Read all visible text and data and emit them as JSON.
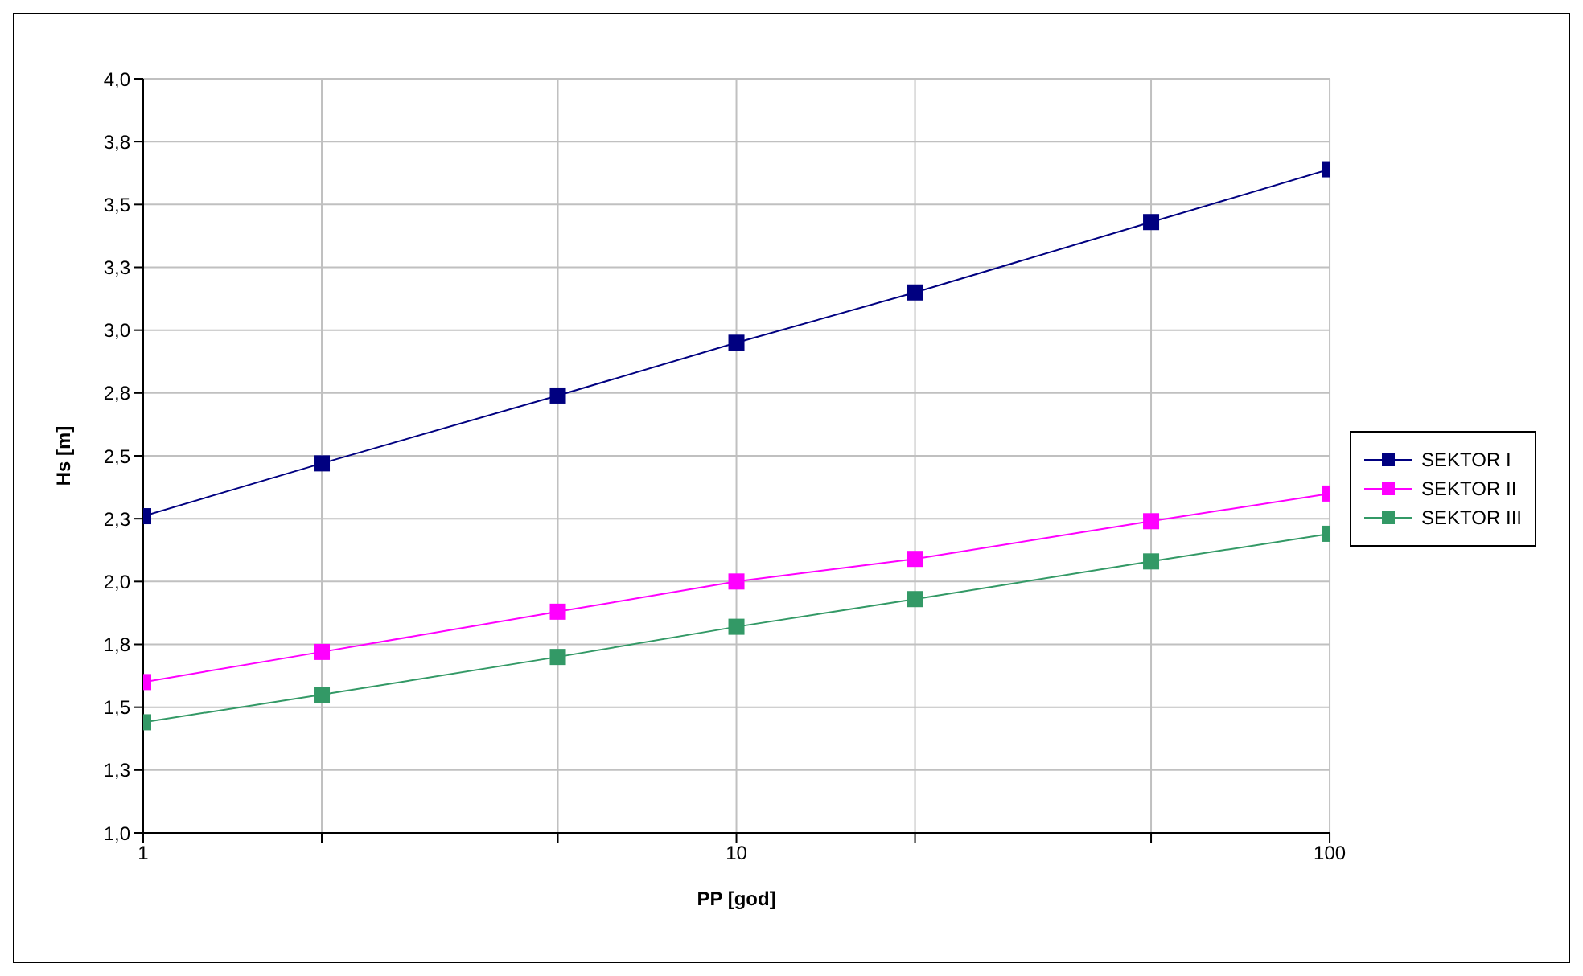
{
  "chart_data": {
    "type": "line",
    "xlabel": "PP [god]",
    "ylabel": "Hs [m]",
    "log": "x",
    "grid": true,
    "legend": "right",
    "marker": "square",
    "line_style": "solid",
    "x": [
      1,
      2,
      5,
      10,
      20,
      50,
      100
    ],
    "xlim": [
      1,
      100
    ],
    "xticks": [
      1,
      {
        "value": 2,
        "label": null
      },
      {
        "value": 5,
        "label": null
      },
      10,
      {
        "value": 20,
        "label": null
      },
      {
        "value": 50,
        "label": null
      },
      100
    ],
    "ylim": [
      1,
      4
    ],
    "yticks": [
      {
        "value": 1,
        "label": "1,0"
      },
      {
        "value": 1.25,
        "label": "1,3"
      },
      {
        "value": 1.5,
        "label": "1,5"
      },
      {
        "value": 1.75,
        "label": "1,8"
      },
      {
        "value": 2,
        "label": "2,0"
      },
      {
        "value": 2.25,
        "label": "2,3"
      },
      {
        "value": 2.5,
        "label": "2,5"
      },
      {
        "value": 2.75,
        "label": "2,8"
      },
      {
        "value": 3,
        "label": "3,0"
      },
      {
        "value": 3.25,
        "label": "3,3"
      },
      {
        "value": 3.5,
        "label": "3,5"
      },
      {
        "value": 3.75,
        "label": "3,8"
      },
      {
        "value": 4,
        "label": "4,0"
      }
    ],
    "series": [
      {
        "name": "SEKTOR I",
        "color": "#000080",
        "values": [
          2.26,
          2.47,
          2.74,
          2.95,
          3.15,
          3.43,
          3.64
        ]
      },
      {
        "name": "SEKTOR II",
        "color": "#ff00ff",
        "values": [
          1.6,
          1.72,
          1.88,
          2.0,
          2.09,
          2.24,
          2.35
        ]
      },
      {
        "name": "SEKTOR III",
        "color": "#339966",
        "values": [
          1.44,
          1.55,
          1.7,
          1.82,
          1.93,
          2.08,
          2.19
        ]
      }
    ]
  }
}
